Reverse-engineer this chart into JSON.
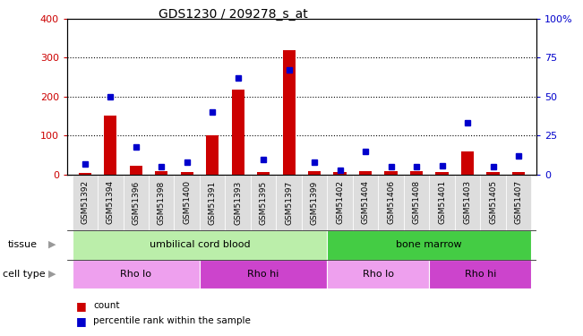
{
  "title": "GDS1230 / 209278_s_at",
  "samples": [
    "GSM51392",
    "GSM51394",
    "GSM51396",
    "GSM51398",
    "GSM51400",
    "GSM51391",
    "GSM51393",
    "GSM51395",
    "GSM51397",
    "GSM51399",
    "GSM51402",
    "GSM51404",
    "GSM51406",
    "GSM51408",
    "GSM51401",
    "GSM51403",
    "GSM51405",
    "GSM51407"
  ],
  "counts": [
    5,
    152,
    22,
    10,
    8,
    100,
    218,
    8,
    318,
    10,
    8,
    10,
    10,
    10,
    6,
    60,
    8,
    8
  ],
  "percentiles": [
    7,
    50,
    18,
    5,
    8,
    40,
    62,
    10,
    67,
    8,
    3,
    15,
    5,
    5,
    6,
    33,
    5,
    12
  ],
  "ylim_left": [
    0,
    400
  ],
  "ylim_right": [
    0,
    100
  ],
  "yticks_left": [
    0,
    100,
    200,
    300,
    400
  ],
  "yticks_right": [
    0,
    25,
    50,
    75,
    100
  ],
  "bar_color": "#cc0000",
  "dot_color": "#0000cc",
  "tissue_groups": [
    {
      "label": "umbilical cord blood",
      "start": 0,
      "end": 9,
      "color": "#bbeeaa"
    },
    {
      "label": "bone marrow",
      "start": 10,
      "end": 17,
      "color": "#44cc44"
    }
  ],
  "cell_type_groups": [
    {
      "label": "Rho lo",
      "start": 0,
      "end": 4,
      "color": "#eea0ee"
    },
    {
      "label": "Rho hi",
      "start": 5,
      "end": 9,
      "color": "#cc44cc"
    },
    {
      "label": "Rho lo",
      "start": 10,
      "end": 13,
      "color": "#eea0ee"
    },
    {
      "label": "Rho hi",
      "start": 14,
      "end": 17,
      "color": "#cc44cc"
    }
  ],
  "label_tissue": "tissue",
  "label_celltype": "cell type",
  "left_tick_color": "#cc0000",
  "right_tick_color": "#0000cc",
  "bar_width": 0.5,
  "xticklabel_bg": "#dddddd",
  "arrow_color": "#999999"
}
